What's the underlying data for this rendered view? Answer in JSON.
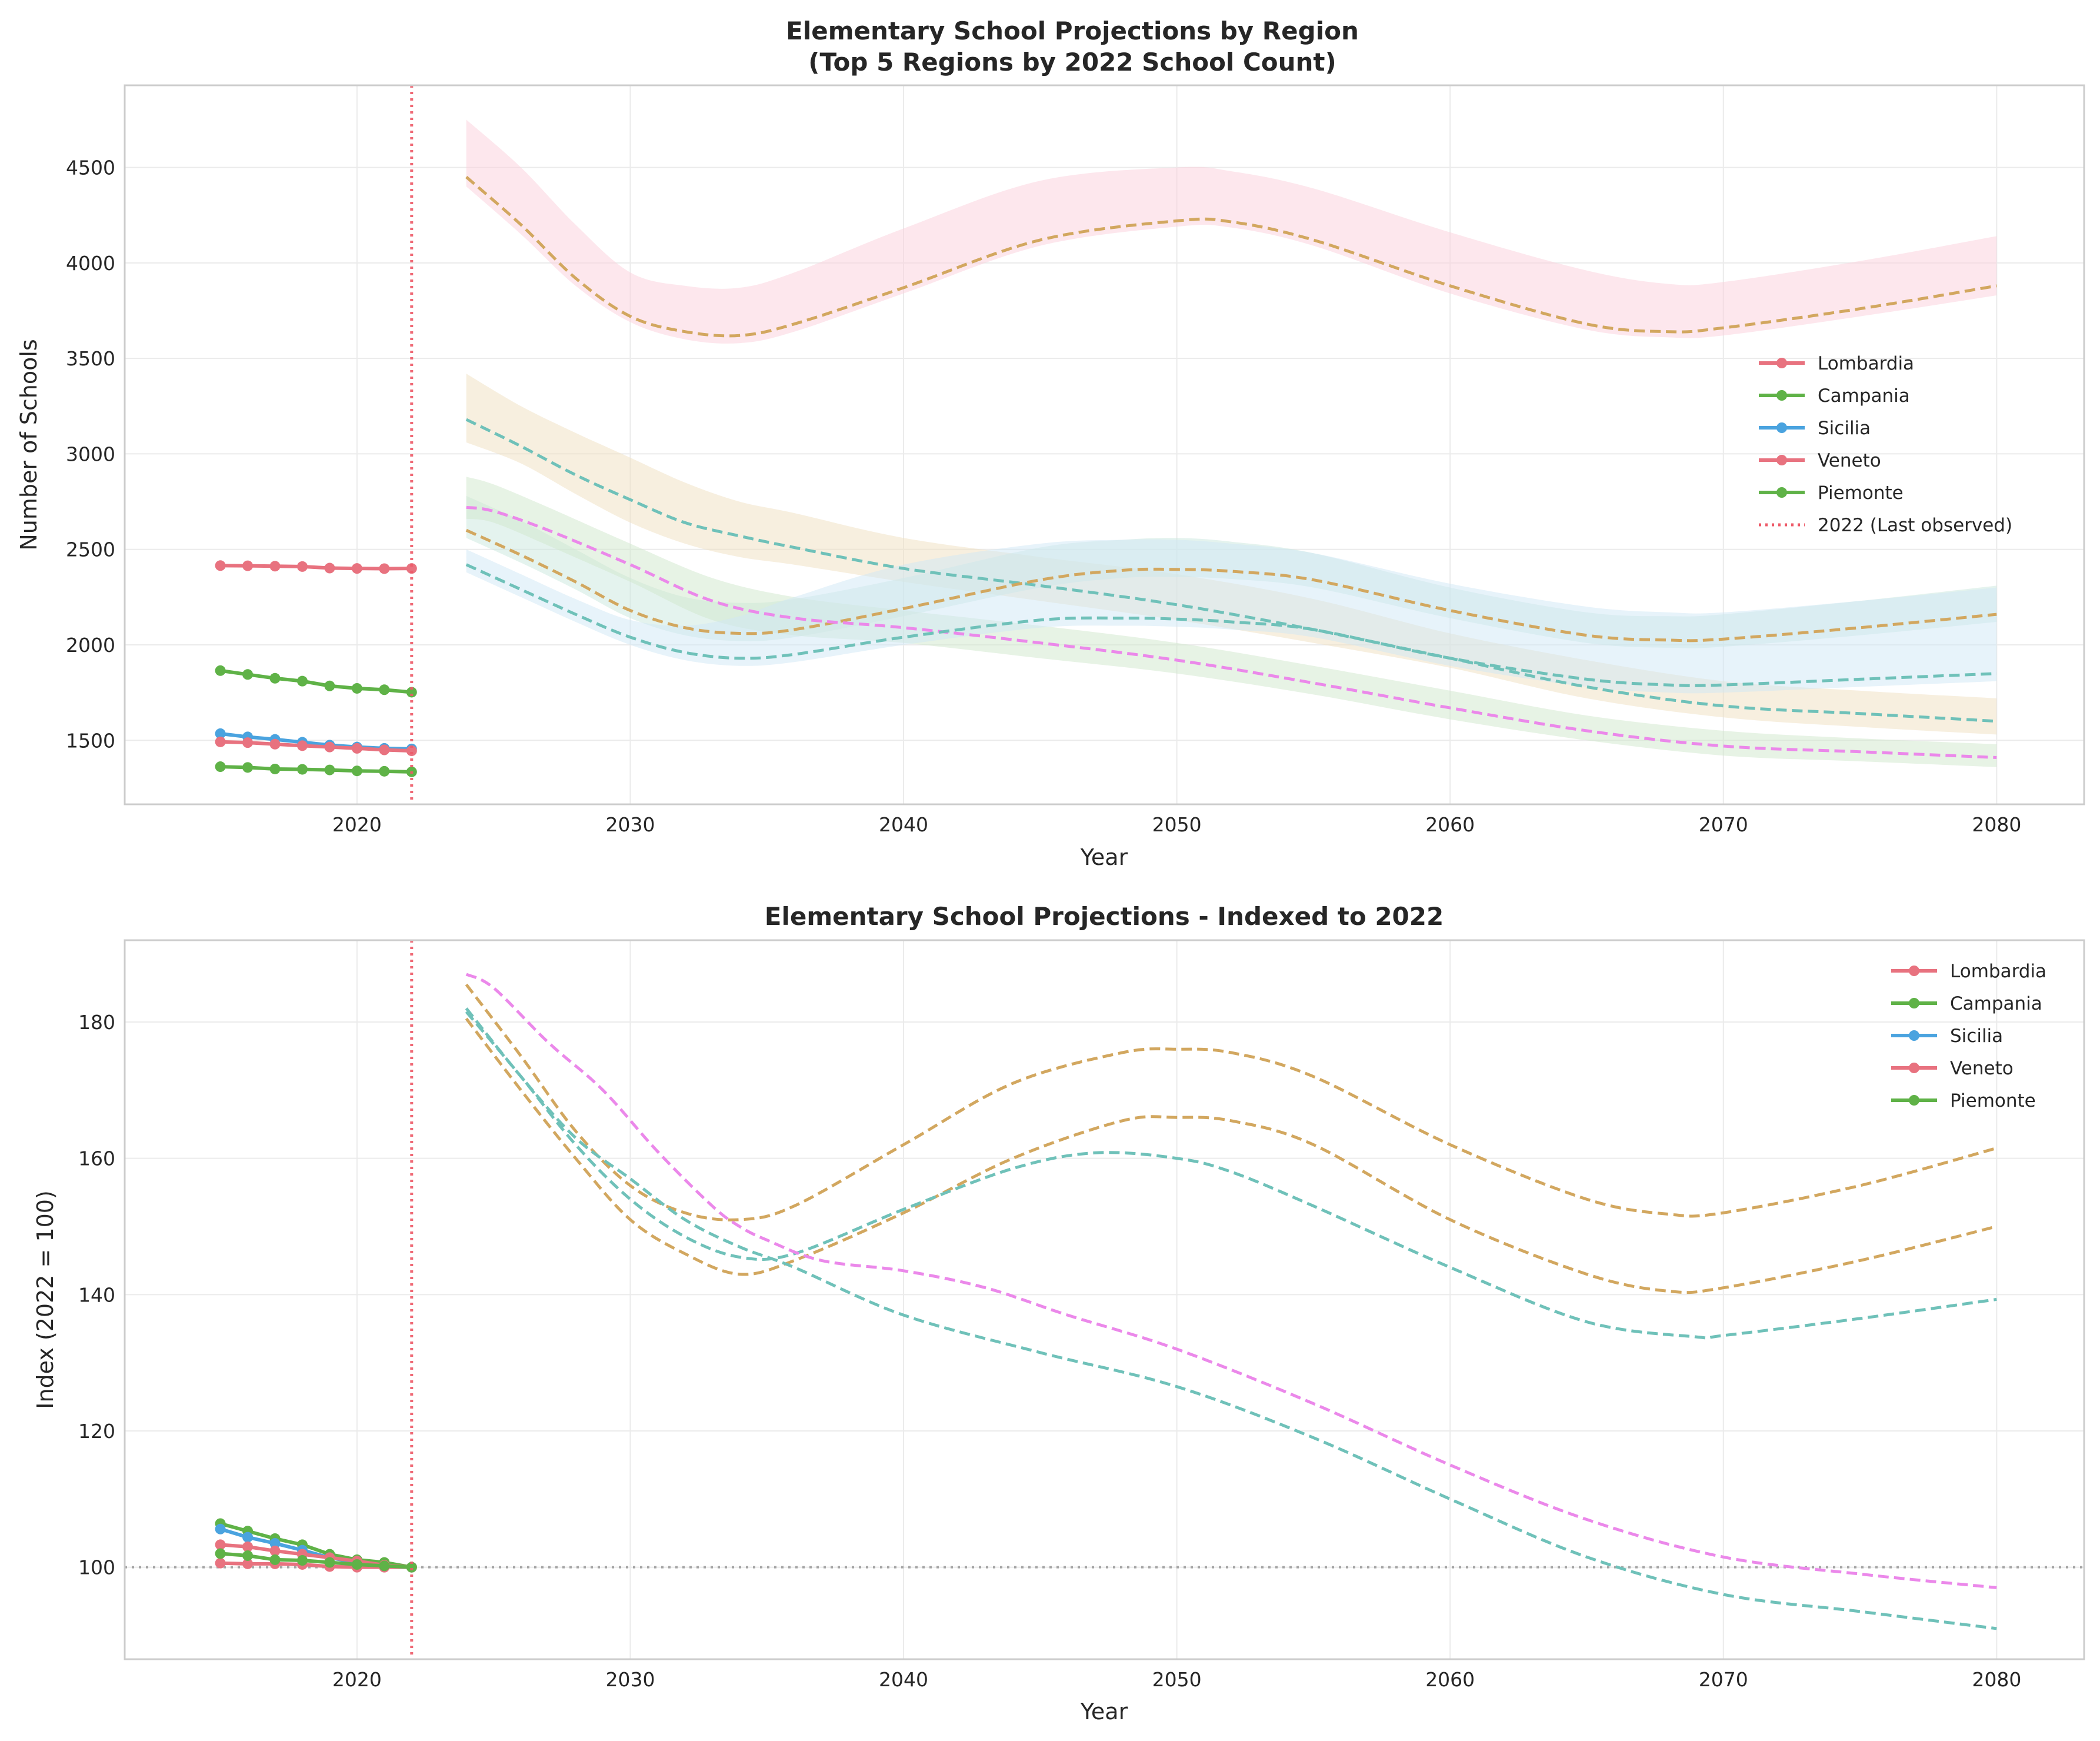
{
  "chart_data": [
    {
      "type": "line",
      "title": "Elementary School Projections by Region",
      "subtitle": "(Top 5 Regions by 2022 School Count)",
      "xlabel": "Year",
      "ylabel": "Number of Schools",
      "xlim": [
        2011.5,
        2083.2
      ],
      "ylim": [
        1165,
        4930
      ],
      "xticks": [
        2020,
        2030,
        2040,
        2050,
        2060,
        2070,
        2080
      ],
      "yticks": [
        1500,
        2000,
        2500,
        3000,
        3500,
        4000,
        4500
      ],
      "grid": true,
      "legend_position": "center-right",
      "last_observed_year": 2022,
      "last_observed_label": "2022 (Last observed)",
      "historical": [
        {
          "name": "Lombardia",
          "color": "#e8727f",
          "x": [
            2015,
            2016,
            2017,
            2018,
            2019,
            2020,
            2021,
            2022
          ],
          "y": [
            2415,
            2414,
            2412,
            2410,
            2402,
            2400,
            2399,
            2400
          ]
        },
        {
          "name": "Campania",
          "color": "#5fb247",
          "x": [
            2015,
            2016,
            2017,
            2018,
            2019,
            2020,
            2021,
            2022
          ],
          "y": [
            1865,
            1845,
            1825,
            1810,
            1785,
            1772,
            1765,
            1752
          ]
        },
        {
          "name": "Sicilia",
          "color": "#4aa3df",
          "x": [
            2015,
            2016,
            2017,
            2018,
            2019,
            2020,
            2021,
            2022
          ],
          "y": [
            1535,
            1518,
            1505,
            1490,
            1475,
            1465,
            1458,
            1455
          ]
        },
        {
          "name": "Veneto",
          "color": "#e8727f",
          "x": [
            2015,
            2016,
            2017,
            2018,
            2019,
            2020,
            2021,
            2022
          ],
          "y": [
            1492,
            1488,
            1480,
            1472,
            1465,
            1458,
            1450,
            1445
          ]
        },
        {
          "name": "Piemonte",
          "color": "#5fb247",
          "x": [
            2015,
            2016,
            2017,
            2018,
            2019,
            2020,
            2021,
            2022
          ],
          "y": [
            1362,
            1358,
            1350,
            1348,
            1345,
            1340,
            1338,
            1335
          ]
        }
      ],
      "projections": [
        {
          "color": "#d2a75f",
          "band_color": "#fcd0dc",
          "x": [
            2024,
            2026,
            2028,
            2030,
            2032,
            2034,
            2036,
            2040,
            2045,
            2050,
            2052,
            2055,
            2060,
            2065,
            2068,
            2070,
            2075,
            2080
          ],
          "y": [
            4450,
            4200,
            3920,
            3720,
            3640,
            3620,
            3680,
            3870,
            4120,
            4220,
            4215,
            4120,
            3880,
            3680,
            3640,
            3660,
            3760,
            3880
          ],
          "lower": [
            4400,
            4150,
            3880,
            3690,
            3600,
            3580,
            3640,
            3840,
            4090,
            4190,
            4185,
            4090,
            3840,
            3650,
            3610,
            3620,
            3720,
            3830
          ],
          "upper": [
            4750,
            4500,
            4200,
            3950,
            3880,
            3870,
            3950,
            4180,
            4430,
            4500,
            4480,
            4390,
            4160,
            3960,
            3890,
            3900,
            4010,
            4140
          ]
        },
        {
          "color": "#6fc1b9",
          "band_color": "#efdfc0",
          "x": [
            2024,
            2026,
            2028,
            2030,
            2032,
            2034,
            2036,
            2040,
            2045,
            2050,
            2055,
            2060,
            2065,
            2070,
            2075,
            2080
          ],
          "y": [
            3180,
            3040,
            2890,
            2760,
            2640,
            2570,
            2510,
            2400,
            2310,
            2210,
            2080,
            1930,
            1780,
            1680,
            1640,
            1600
          ],
          "lower": [
            3060,
            2950,
            2790,
            2640,
            2530,
            2460,
            2420,
            2330,
            2230,
            2130,
            2010,
            1880,
            1720,
            1620,
            1570,
            1530
          ],
          "upper": [
            3420,
            3250,
            3110,
            2980,
            2850,
            2750,
            2690,
            2560,
            2460,
            2370,
            2240,
            2060,
            1920,
            1810,
            1760,
            1720
          ]
        },
        {
          "color": "#d2a75f",
          "band_color": "#c9e7dd",
          "x": [
            2024,
            2026,
            2028,
            2030,
            2032,
            2034,
            2036,
            2040,
            2045,
            2048,
            2050,
            2052,
            2055,
            2060,
            2065,
            2068,
            2070,
            2075,
            2080
          ],
          "y": [
            2600,
            2470,
            2330,
            2180,
            2090,
            2060,
            2080,
            2190,
            2340,
            2390,
            2395,
            2385,
            2340,
            2180,
            2050,
            2025,
            2030,
            2090,
            2160
          ],
          "lower": [
            2560,
            2430,
            2290,
            2140,
            2050,
            2020,
            2040,
            2150,
            2300,
            2350,
            2355,
            2345,
            2300,
            2140,
            2010,
            1985,
            1990,
            2050,
            2120
          ],
          "upper": [
            2780,
            2650,
            2500,
            2350,
            2250,
            2220,
            2240,
            2350,
            2510,
            2550,
            2560,
            2540,
            2480,
            2300,
            2170,
            2150,
            2160,
            2230,
            2310
          ]
        },
        {
          "color": "#eb88ea",
          "band_color": "#cfe8cb",
          "x": [
            2024,
            2025,
            2027,
            2030,
            2033,
            2036,
            2040,
            2045,
            2050,
            2055,
            2060,
            2065,
            2070,
            2075,
            2080
          ],
          "y": [
            2720,
            2700,
            2600,
            2420,
            2230,
            2140,
            2090,
            2010,
            1920,
            1800,
            1670,
            1550,
            1470,
            1440,
            1410
          ],
          "lower": [
            2660,
            2640,
            2520,
            2330,
            2130,
            2050,
            2010,
            1930,
            1850,
            1740,
            1610,
            1500,
            1420,
            1390,
            1360
          ],
          "upper": [
            2880,
            2840,
            2720,
            2530,
            2350,
            2250,
            2180,
            2100,
            2010,
            1890,
            1760,
            1630,
            1550,
            1510,
            1480
          ]
        },
        {
          "color": "#6fc1b9",
          "band_color": "#cfe8f5",
          "x": [
            2024,
            2026,
            2028,
            2030,
            2032,
            2034,
            2036,
            2040,
            2045,
            2048,
            2050,
            2052,
            2055,
            2060,
            2065,
            2068,
            2070,
            2075,
            2080
          ],
          "y": [
            2420,
            2290,
            2160,
            2040,
            1960,
            1930,
            1950,
            2040,
            2130,
            2140,
            2135,
            2120,
            2080,
            1930,
            1820,
            1790,
            1790,
            1820,
            1850
          ],
          "lower": [
            2380,
            2250,
            2120,
            2000,
            1920,
            1890,
            1910,
            2000,
            2090,
            2100,
            2095,
            2080,
            2040,
            1890,
            1780,
            1750,
            1750,
            1780,
            1810
          ],
          "upper": [
            2500,
            2370,
            2240,
            2130,
            2100,
            2150,
            2250,
            2420,
            2530,
            2550,
            2550,
            2530,
            2480,
            2320,
            2200,
            2170,
            2170,
            2230,
            2300
          ]
        }
      ]
    },
    {
      "type": "line",
      "title": "Elementary School Projections - Indexed to 2022",
      "xlabel": "Year",
      "ylabel": "Index (2022 = 100)",
      "xlim": [
        2011.5,
        2083.2
      ],
      "ylim": [
        86.5,
        192
      ],
      "xticks": [
        2020,
        2030,
        2040,
        2050,
        2060,
        2070,
        2080
      ],
      "yticks": [
        100,
        120,
        140,
        160,
        180
      ],
      "grid": true,
      "legend_position": "top-right",
      "reference_y": 100,
      "historical": [
        {
          "name": "Lombardia",
          "color": "#e8727f",
          "x": [
            2015,
            2016,
            2017,
            2018,
            2019,
            2020,
            2021,
            2022
          ],
          "y": [
            100.6,
            100.5,
            100.5,
            100.4,
            100.1,
            100.0,
            100.0,
            100.0
          ]
        },
        {
          "name": "Campania",
          "color": "#5fb247",
          "x": [
            2015,
            2016,
            2017,
            2018,
            2019,
            2020,
            2021,
            2022
          ],
          "y": [
            106.4,
            105.3,
            104.2,
            103.3,
            101.9,
            101.1,
            100.7,
            100.0
          ]
        },
        {
          "name": "Sicilia",
          "color": "#4aa3df",
          "x": [
            2015,
            2016,
            2017,
            2018,
            2019,
            2020,
            2021,
            2022
          ],
          "y": [
            105.6,
            104.4,
            103.5,
            102.5,
            101.4,
            100.7,
            100.2,
            100.0
          ]
        },
        {
          "name": "Veneto",
          "color": "#e8727f",
          "x": [
            2015,
            2016,
            2017,
            2018,
            2019,
            2020,
            2021,
            2022
          ],
          "y": [
            103.3,
            103.0,
            102.4,
            101.9,
            101.4,
            100.9,
            100.3,
            100.0
          ]
        },
        {
          "name": "Piemonte",
          "color": "#5fb247",
          "x": [
            2015,
            2016,
            2017,
            2018,
            2019,
            2020,
            2021,
            2022
          ],
          "y": [
            102.0,
            101.7,
            101.1,
            101.0,
            100.7,
            100.4,
            100.2,
            100.0
          ]
        }
      ],
      "projections": [
        {
          "color": "#d2a75f",
          "x": [
            2024,
            2026,
            2028,
            2030,
            2032,
            2034,
            2036,
            2040,
            2044,
            2048,
            2050,
            2052,
            2055,
            2060,
            2065,
            2068,
            2070,
            2075,
            2080
          ],
          "y": [
            185.5,
            175,
            164,
            156,
            152,
            151,
            153,
            162,
            171,
            175.5,
            176,
            175.5,
            172,
            162,
            154,
            151.8,
            152,
            156,
            161.5
          ]
        },
        {
          "color": "#d2a75f",
          "x": [
            2024,
            2026,
            2028,
            2030,
            2032,
            2034,
            2036,
            2040,
            2044,
            2048,
            2050,
            2052,
            2055,
            2060,
            2065,
            2068,
            2070,
            2075,
            2080
          ],
          "y": [
            180.5,
            170,
            160,
            151,
            146,
            143,
            145,
            152,
            160,
            165.5,
            166,
            165.5,
            162,
            151,
            143,
            140.5,
            141,
            145,
            150
          ]
        },
        {
          "color": "#6fc1b9",
          "x": [
            2024,
            2026,
            2028,
            2030,
            2032,
            2034,
            2036,
            2040,
            2044,
            2047,
            2050,
            2052,
            2055,
            2060,
            2065,
            2069,
            2070,
            2075,
            2080
          ],
          "y": [
            181.5,
            172,
            162,
            154,
            148.5,
            145.5,
            146,
            152.5,
            158.5,
            160.8,
            160,
            158,
            153,
            144,
            136,
            133.8,
            134,
            136.5,
            139.3
          ]
        },
        {
          "color": "#eb88ea",
          "x": [
            2024,
            2025,
            2027,
            2029,
            2031,
            2033,
            2034,
            2035,
            2037,
            2040,
            2043,
            2046,
            2050,
            2055,
            2060,
            2065,
            2070,
            2075,
            2080
          ],
          "y": [
            187,
            185,
            177,
            170,
            161,
            153,
            150,
            148,
            145,
            143.5,
            141,
            137,
            132,
            124,
            115,
            107,
            101.5,
            99,
            97
          ]
        },
        {
          "color": "#6fc1b9",
          "x": [
            2024,
            2026,
            2028,
            2030,
            2032,
            2034,
            2036,
            2040,
            2045,
            2050,
            2055,
            2060,
            2065,
            2070,
            2075,
            2080
          ],
          "y": [
            182,
            172,
            163,
            157,
            151,
            147,
            144,
            137,
            131.5,
            126.5,
            119,
            110,
            101.5,
            96,
            93.5,
            91
          ]
        }
      ]
    }
  ]
}
